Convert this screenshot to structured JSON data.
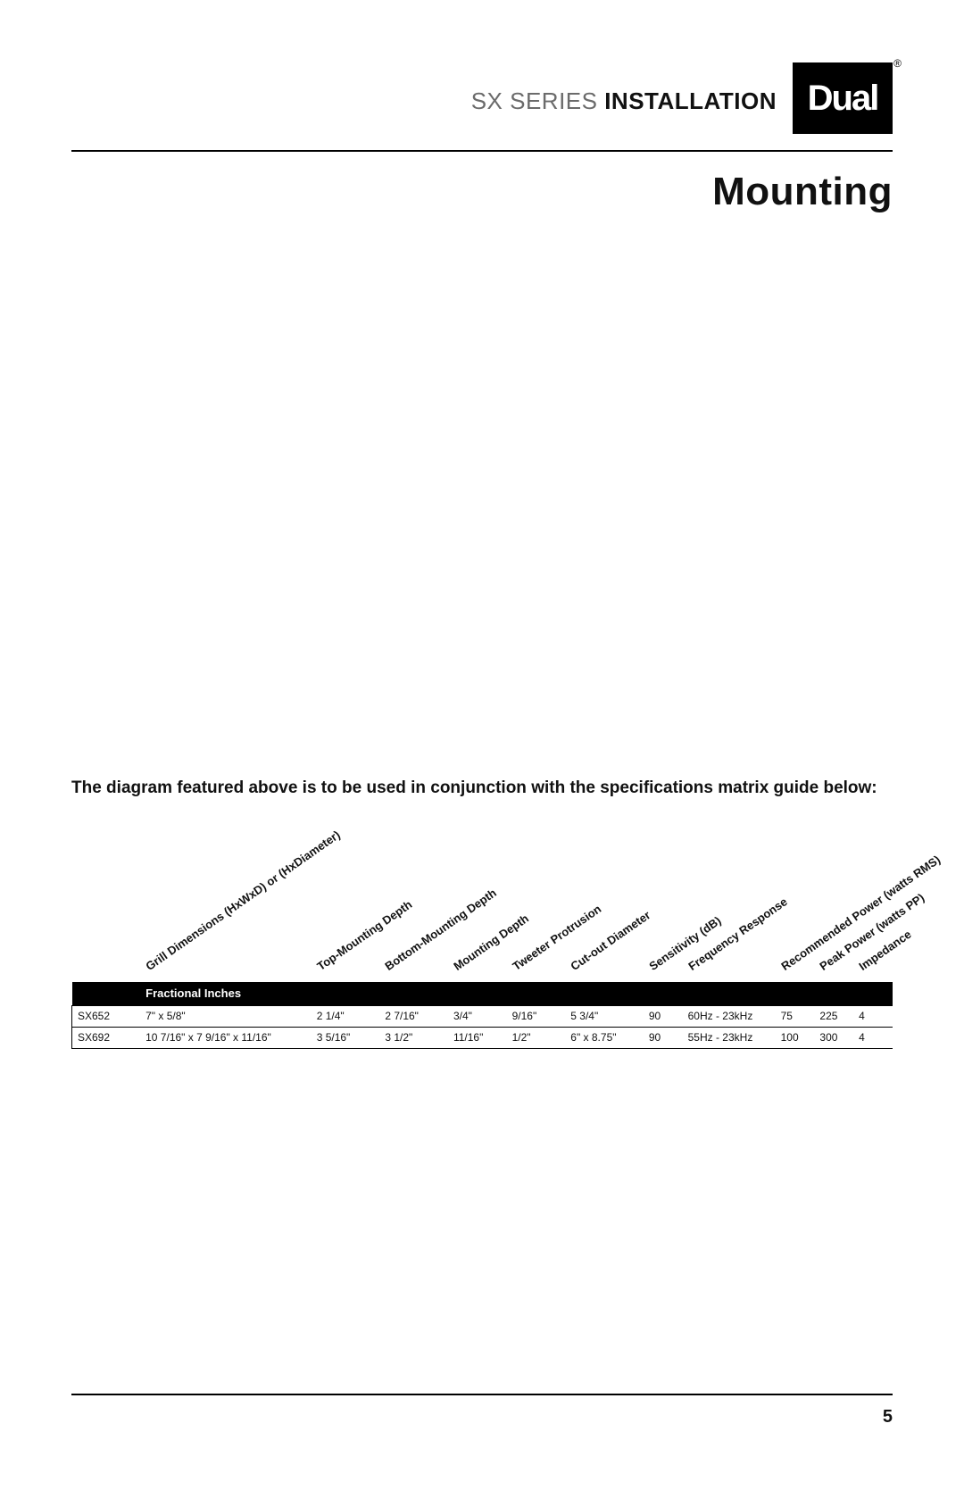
{
  "header": {
    "title_light": "SX SERIES ",
    "title_bold": "INSTALLATION",
    "logo_text": "Dual"
  },
  "section_title": "Mounting",
  "caption": "The diagram featured above is to be used in conjunction with the specifications matrix guide below:",
  "spec_table": {
    "unit_label": "Fractional Inches",
    "columns": {
      "model": "",
      "grill": "Grill Dimensions\n(HxWxD) or (HxDiameter)",
      "top_mounting": "Top-Mounting Depth",
      "bottom_mounting": "Bottom-Mounting Depth",
      "mounting_depth": "Mounting Depth",
      "tweeter_protrusion": "Tweeter Protrusion",
      "cutout": "Cut-out Diameter",
      "sensitivity": "Sensitivity (dB)",
      "frequency": "Frequency Response",
      "rec_power": "Recommended Power\n(watts RMS)",
      "peak_power": "Peak Power\n(watts PP)",
      "impedance": "Impedance"
    },
    "rows": [
      {
        "model": "SX652",
        "grill": "7\" x 5/8\"",
        "top_mounting": "2 1/4\"",
        "bottom_mounting": "2 7/16\"",
        "mounting_depth": "3/4\"",
        "tweeter_protrusion": "9/16\"",
        "cutout": "5 3/4\"",
        "sensitivity": "90",
        "frequency": "60Hz - 23kHz",
        "rec_power": "75",
        "peak_power": "225",
        "impedance": "4"
      },
      {
        "model": "SX692",
        "grill": "10 7/16\" x 7 9/16\" x 11/16\"",
        "top_mounting": "3 5/16\"",
        "bottom_mounting": "3 1/2\"",
        "mounting_depth": "11/16\"",
        "tweeter_protrusion": "1/2\"",
        "cutout": "6\" x 8.75\"",
        "sensitivity": "90",
        "frequency": "55Hz - 23kHz",
        "rec_power": "100",
        "peak_power": "300",
        "impedance": "4"
      }
    ]
  },
  "page_number": "5",
  "colors": {
    "text": "#111111",
    "header_black": "#000000",
    "header_white": "#ffffff",
    "rule": "#000000",
    "bg": "#ffffff"
  },
  "typography": {
    "header_title_fontsize": 26,
    "section_title_fontsize": 44,
    "caption_fontsize": 19,
    "table_fontsize": 13,
    "pagenum_fontsize": 20
  }
}
